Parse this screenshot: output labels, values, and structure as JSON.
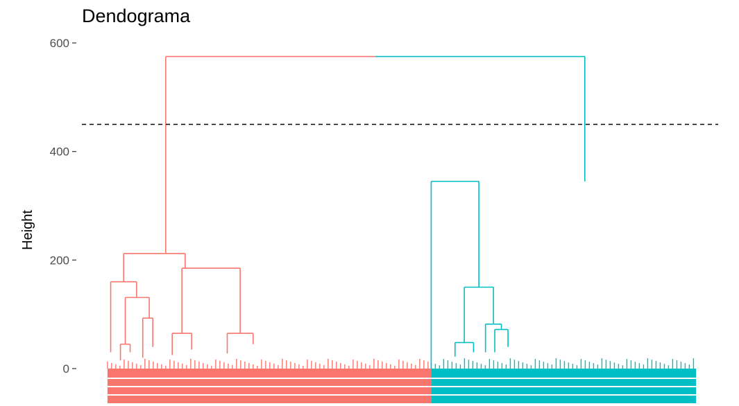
{
  "chart_data": {
    "type": "dendrogram",
    "title": "Dendograma",
    "ylabel": "Height",
    "xlabel": "",
    "ylim": [
      -20,
      600
    ],
    "yticks": [
      0,
      200,
      400,
      600
    ],
    "ytick_labels": [
      "0",
      "200",
      "400",
      "600"
    ],
    "cut_height": 450,
    "grid": false,
    "n_clusters": 2,
    "clusters": [
      {
        "id": 1,
        "color": "#F8766D",
        "share": 0.55
      },
      {
        "id": 2,
        "color": "#00BFC4",
        "share": 0.45
      }
    ],
    "colors": {
      "cluster_1": "#F8766D",
      "cluster_2": "#00BFC4",
      "cut_line": "#000000",
      "axis_text": "#4d4d4d"
    },
    "merges": [
      {
        "height": 575,
        "left_center": 0.18,
        "right_center": 0.58,
        "left_top": 212,
        "right_top": 345,
        "colors": [
          "#F8766D",
          "#00BFC4"
        ]
      },
      {
        "height": 212,
        "cluster": 1,
        "left_center": 0.05,
        "right_center": 0.24,
        "left_top": 160,
        "right_top": 185
      },
      {
        "height": 160,
        "cluster": 1,
        "left_center": 0.01,
        "right_center": 0.09,
        "left_top": 30,
        "right_top": 131
      },
      {
        "height": 131,
        "cluster": 1,
        "left_center": 0.055,
        "right_center": 0.129,
        "left_top": 45,
        "right_top": 93
      },
      {
        "height": 93,
        "cluster": 1,
        "left_center": 0.109,
        "right_center": 0.14,
        "left_top": 20,
        "right_top": 40
      },
      {
        "height": 45,
        "cluster": 1,
        "left_center": 0.04,
        "right_center": 0.07,
        "left_top": 15,
        "right_top": 30
      },
      {
        "height": 185,
        "cluster": 1,
        "left_center": 0.23,
        "right_center": 0.41,
        "left_top": 65,
        "right_top": 65
      },
      {
        "height": 65,
        "cluster": 1,
        "left_center": 0.2,
        "right_center": 0.26,
        "left_top": 25,
        "right_top": 35
      },
      {
        "height": 65,
        "cluster": 1,
        "left_center": 0.37,
        "right_center": 0.45,
        "left_top": 28,
        "right_top": 45
      },
      {
        "height": 345,
        "cluster": 2,
        "left_center": 0.0,
        "right_center": 0.18,
        "left_top": 0,
        "right_top": 150
      },
      {
        "height": 150,
        "cluster": 2,
        "left_center": 0.125,
        "right_center": 0.235,
        "left_top": 48,
        "right_top": 82
      },
      {
        "height": 82,
        "cluster": 2,
        "left_center": 0.205,
        "right_center": 0.265,
        "left_top": 30,
        "right_top": 72
      },
      {
        "height": 72,
        "cluster": 2,
        "left_center": 0.24,
        "right_center": 0.29,
        "left_top": 30,
        "right_top": 40
      },
      {
        "height": 48,
        "cluster": 2,
        "left_center": 0.09,
        "right_center": 0.16,
        "left_top": 22,
        "right_top": 30
      }
    ]
  }
}
